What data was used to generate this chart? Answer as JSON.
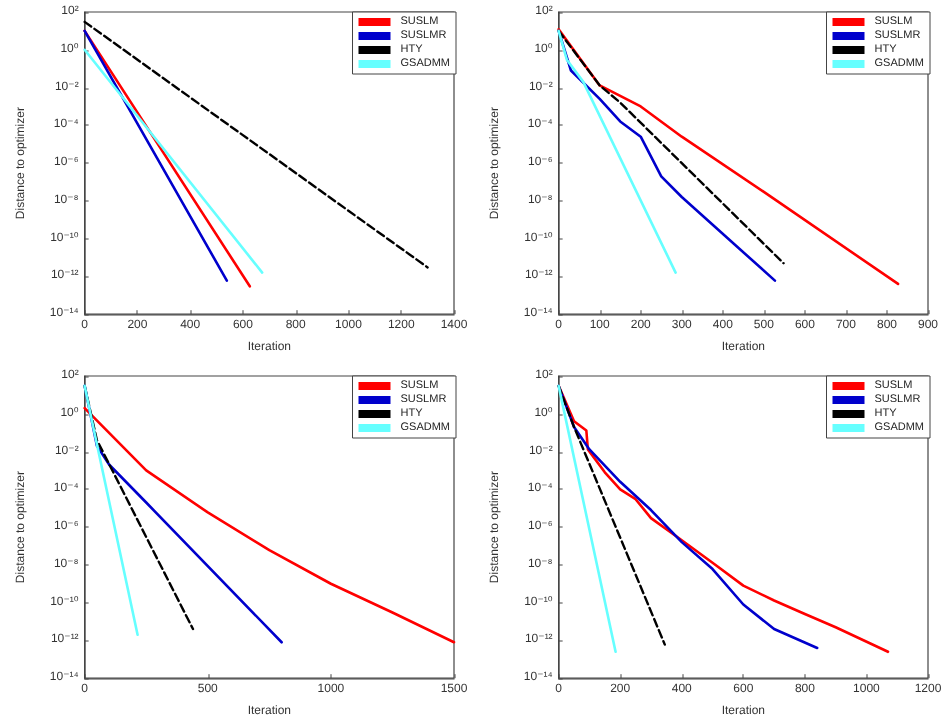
{
  "chart_data": [
    {
      "type": "line",
      "xlabel": "Iteration",
      "ylabel": "Distance to optimizer",
      "log": "y",
      "legend": "top right",
      "marker": "none",
      "grid": false,
      "xlim": [
        0,
        1400
      ],
      "xticks": [
        0,
        200,
        400,
        600,
        800,
        1000,
        1200,
        1400
      ],
      "ylim": [
        1e-14,
        100
      ],
      "yticks": [
        {
          "value": 1e-14,
          "label": "10⁻¹⁴"
        },
        {
          "value": 1e-12,
          "label": "10⁻¹²"
        },
        {
          "value": 1e-10,
          "label": "10⁻¹⁰"
        },
        {
          "value": 1e-08,
          "label": "10⁻⁸"
        },
        {
          "value": 1e-06,
          "label": "10⁻⁶"
        },
        {
          "value": 0.0001,
          "label": "10⁻⁴"
        },
        {
          "value": 0.01,
          "label": "10⁻²"
        },
        {
          "value": 1,
          "label": "10⁰"
        },
        {
          "value": 100,
          "label": "10²"
        }
      ],
      "series": [
        {
          "name": "SUSLM",
          "color": "#ff0000",
          "line_style": "solid",
          "x": [
            0,
            626
          ],
          "values": [
            10,
            3e-13
          ]
        },
        {
          "name": "SUSLMR",
          "color": "#0000cc",
          "line_style": "solid",
          "x": [
            0,
            539
          ],
          "values": [
            10,
            6e-13
          ]
        },
        {
          "name": "HTY",
          "color": "#000000",
          "line_style": "dashed",
          "x": [
            0,
            1300
          ],
          "values": [
            30,
            3e-12
          ]
        },
        {
          "name": "GSADMM",
          "color": "#66ffff",
          "line_style": "solid",
          "x": [
            0,
            673
          ],
          "values": [
            1,
            1.6e-12
          ]
        }
      ]
    },
    {
      "type": "line",
      "xlabel": "Iteration",
      "ylabel": "Distance to optimizer",
      "log": "y",
      "legend": "top right",
      "marker": "none",
      "grid": false,
      "xlim": [
        0,
        900
      ],
      "xticks": [
        0,
        100,
        200,
        300,
        400,
        500,
        600,
        700,
        800,
        900
      ],
      "ylim": [
        1e-14,
        100
      ],
      "yticks": [
        {
          "value": 1e-14,
          "label": "10⁻¹⁴"
        },
        {
          "value": 1e-12,
          "label": "10⁻¹²"
        },
        {
          "value": 1e-10,
          "label": "10⁻¹⁰"
        },
        {
          "value": 1e-08,
          "label": "10⁻⁸"
        },
        {
          "value": 1e-06,
          "label": "10⁻⁶"
        },
        {
          "value": 0.0001,
          "label": "10⁻⁴"
        },
        {
          "value": 0.01,
          "label": "10⁻²"
        },
        {
          "value": 1,
          "label": "10⁰"
        },
        {
          "value": 100,
          "label": "10²"
        }
      ],
      "series": [
        {
          "name": "SUSLM",
          "color": "#ff0000",
          "line_style": "solid",
          "x": [
            0,
            100,
            200,
            300,
            500,
            827
          ],
          "values": [
            12,
            0.013,
            0.001,
            2.5e-05,
            3e-08,
            4e-13
          ]
        },
        {
          "name": "SUSLMR",
          "color": "#0000cc",
          "line_style": "solid",
          "x": [
            0,
            30,
            100,
            150,
            200,
            250,
            300,
            527
          ],
          "values": [
            10,
            0.08,
            0.0025,
            0.00016,
            2.5e-05,
            2e-07,
            1.6e-08,
            6e-13
          ]
        },
        {
          "name": "HTY",
          "color": "#000000",
          "line_style": "dashed",
          "x": [
            0,
            100,
            150,
            548
          ],
          "values": [
            10,
            0.013,
            0.0016,
            5e-12
          ]
        },
        {
          "name": "GSADMM",
          "color": "#66ffff",
          "line_style": "solid",
          "x": [
            0,
            20,
            60,
            285
          ],
          "values": [
            10,
            0.3,
            0.02,
            1.6e-12
          ]
        }
      ]
    },
    {
      "type": "line",
      "xlabel": "Iteration",
      "ylabel": "Distance to optimizer",
      "log": "y",
      "legend": "top right",
      "marker": "none",
      "grid": false,
      "xlim": [
        0,
        1500
      ],
      "xticks": [
        0,
        500,
        1000,
        1500
      ],
      "ylim": [
        1e-14,
        100
      ],
      "yticks": [
        {
          "value": 1e-14,
          "label": "10⁻¹⁴"
        },
        {
          "value": 1e-12,
          "label": "10⁻¹²"
        },
        {
          "value": 1e-10,
          "label": "10⁻¹⁰"
        },
        {
          "value": 1e-08,
          "label": "10⁻⁸"
        },
        {
          "value": 1e-06,
          "label": "10⁻⁶"
        },
        {
          "value": 0.0001,
          "label": "10⁻⁴"
        },
        {
          "value": 0.01,
          "label": "10⁻²"
        },
        {
          "value": 1,
          "label": "10⁰"
        },
        {
          "value": 100,
          "label": "10²"
        }
      ],
      "series": [
        {
          "name": "SUSLM",
          "color": "#ff0000",
          "line_style": "solid",
          "x": [
            0,
            250,
            500,
            750,
            1000,
            1250,
            1500
          ],
          "values": [
            2,
            0.001,
            6e-06,
            6e-08,
            1e-09,
            3e-11,
            8e-13
          ]
        },
        {
          "name": "SUSLMR",
          "color": "#0000cc",
          "line_style": "solid",
          "x": [
            0,
            50,
            100,
            250,
            800
          ],
          "values": [
            30,
            0.02,
            0.002,
            2e-05,
            8e-13
          ]
        },
        {
          "name": "HTY",
          "color": "#000000",
          "line_style": "dashed",
          "x": [
            0,
            50,
            440
          ],
          "values": [
            30,
            0.04,
            4e-12
          ]
        },
        {
          "name": "GSADMM",
          "color": "#66ffff",
          "line_style": "solid",
          "x": [
            0,
            30,
            215
          ],
          "values": [
            30,
            0.4,
            2e-12
          ]
        }
      ]
    },
    {
      "type": "line",
      "xlabel": "Iteration",
      "ylabel": "Distance to optimizer",
      "log": "y",
      "legend": "top right",
      "marker": "none",
      "grid": false,
      "xlim": [
        0,
        1200
      ],
      "xticks": [
        0,
        200,
        400,
        600,
        800,
        1000,
        1200
      ],
      "ylim": [
        1e-14,
        100
      ],
      "yticks": [
        {
          "value": 1e-14,
          "label": "10⁻¹⁴"
        },
        {
          "value": 1e-12,
          "label": "10⁻¹²"
        },
        {
          "value": 1e-10,
          "label": "10⁻¹⁰"
        },
        {
          "value": 1e-08,
          "label": "10⁻⁸"
        },
        {
          "value": 1e-06,
          "label": "10⁻⁶"
        },
        {
          "value": 0.0001,
          "label": "10⁻⁴"
        },
        {
          "value": 0.01,
          "label": "10⁻²"
        },
        {
          "value": 1,
          "label": "10⁰"
        },
        {
          "value": 100,
          "label": "10²"
        }
      ],
      "series": [
        {
          "name": "SUSLM",
          "color": "#ff0000",
          "line_style": "solid",
          "x": [
            0,
            50,
            90,
            95,
            150,
            200,
            250,
            300,
            400,
            500,
            600,
            700,
            800,
            900,
            1070
          ],
          "values": [
            30,
            0.4,
            0.13,
            0.013,
            0.0008,
            0.0001,
            3e-05,
            3e-06,
            2e-07,
            1.3e-08,
            8e-10,
            1.3e-10,
            2.5e-11,
            5e-12,
            2.5e-13
          ]
        },
        {
          "name": "SUSLMR",
          "color": "#0000cc",
          "line_style": "solid",
          "x": [
            0,
            50,
            100,
            200,
            300,
            400,
            500,
            600,
            700,
            840
          ],
          "values": [
            30,
            0.2,
            0.013,
            0.00025,
            8e-06,
            1.6e-07,
            6e-09,
            8e-11,
            4e-12,
            4e-13
          ]
        },
        {
          "name": "HTY",
          "color": "#000000",
          "line_style": "dashed",
          "x": [
            0,
            50,
            345
          ],
          "values": [
            30,
            0.2,
            6e-13
          ]
        },
        {
          "name": "GSADMM",
          "color": "#66ffff",
          "line_style": "solid",
          "x": [
            0,
            185
          ],
          "values": [
            30,
            2.5e-13
          ]
        }
      ]
    }
  ]
}
